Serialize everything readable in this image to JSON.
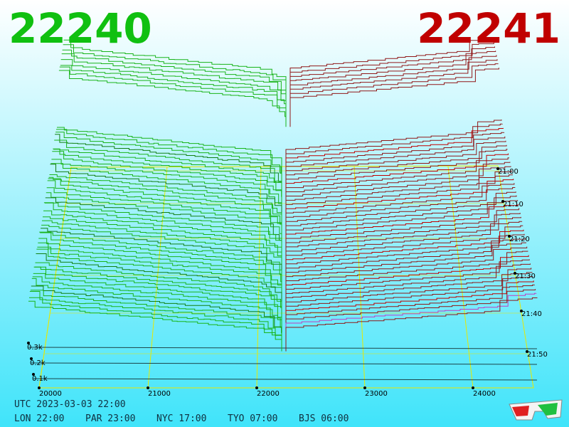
{
  "header": {
    "bid": "22240",
    "ask": "22241"
  },
  "axes": {
    "price_labels": [
      "20000",
      "21000",
      "22000",
      "23000",
      "24000"
    ],
    "time_labels": [
      "21:00",
      "21:10",
      "21:20",
      "21:30",
      "21:40",
      "21:50"
    ],
    "depth_labels": [
      "0.3k",
      "0.2k",
      "0.1k"
    ]
  },
  "footer": {
    "utc": "UTC 2023-03-03 22:00",
    "clocks": [
      "LON 22:00",
      "PAR 23:00",
      "NYC 17:00",
      "TYO 07:00",
      "BJS 06:00"
    ]
  }
}
